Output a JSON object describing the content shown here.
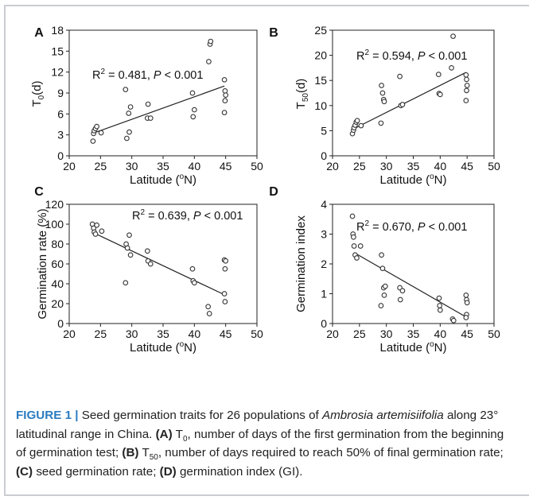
{
  "chart_data": [
    {
      "panel": "A",
      "type": "scatter",
      "ylabel_main": "T",
      "ylabel_sub": "0",
      "ylabel_rest": "(d)",
      "xlabel": "Latitude (°N)",
      "xlim": [
        20,
        50
      ],
      "ylim": [
        0,
        18
      ],
      "xticks": [
        20,
        25,
        30,
        35,
        40,
        45,
        50
      ],
      "yticks": [
        0,
        3,
        6,
        9,
        12,
        15,
        18
      ],
      "annotation": "R² = 0.481, P < 0.001",
      "trendline": [
        [
          24,
          3.3
        ],
        [
          44.8,
          10.0
        ]
      ],
      "points": [
        [
          23.8,
          2.1
        ],
        [
          23.9,
          3.2
        ],
        [
          24.0,
          3.6
        ],
        [
          24.2,
          3.9
        ],
        [
          24.4,
          4.2
        ],
        [
          25.1,
          3.3
        ],
        [
          29.0,
          9.5
        ],
        [
          29.2,
          2.5
        ],
        [
          29.5,
          6.1
        ],
        [
          29.6,
          3.4
        ],
        [
          29.8,
          7.0
        ],
        [
          32.5,
          5.4
        ],
        [
          32.6,
          7.4
        ],
        [
          33.0,
          5.4
        ],
        [
          39.7,
          9.0
        ],
        [
          39.8,
          5.6
        ],
        [
          40.0,
          6.6
        ],
        [
          42.3,
          13.5
        ],
        [
          42.5,
          16.0
        ],
        [
          42.6,
          16.4
        ],
        [
          44.8,
          10.9
        ],
        [
          44.9,
          9.3
        ],
        [
          45.0,
          8.7
        ],
        [
          44.9,
          7.9
        ],
        [
          44.8,
          6.2
        ]
      ]
    },
    {
      "panel": "B",
      "type": "scatter",
      "ylabel_main": "T",
      "ylabel_sub": "50",
      "ylabel_rest": "(d)",
      "xlabel": "Latitude (°N)",
      "xlim": [
        20,
        50
      ],
      "ylim": [
        0,
        25
      ],
      "xticks": [
        20,
        25,
        30,
        35,
        40,
        45,
        50
      ],
      "yticks": [
        0,
        5,
        10,
        15,
        20,
        25
      ],
      "annotation": "R² = 0.594, P < 0.001",
      "trendline": [
        [
          24,
          5.4
        ],
        [
          44.8,
          16.6
        ]
      ],
      "points": [
        [
          23.7,
          4.4
        ],
        [
          23.9,
          5.1
        ],
        [
          24.0,
          5.6
        ],
        [
          24.2,
          6.1
        ],
        [
          24.4,
          6.7
        ],
        [
          24.6,
          7.0
        ],
        [
          25.3,
          6.0
        ],
        [
          29.0,
          6.5
        ],
        [
          29.1,
          14.0
        ],
        [
          29.3,
          12.5
        ],
        [
          29.5,
          11.2
        ],
        [
          29.6,
          10.8
        ],
        [
          32.5,
          15.8
        ],
        [
          32.7,
          10.0
        ],
        [
          33.0,
          10.2
        ],
        [
          39.7,
          16.2
        ],
        [
          39.8,
          12.4
        ],
        [
          40.0,
          12.2
        ],
        [
          42.1,
          17.5
        ],
        [
          42.4,
          23.8
        ],
        [
          44.8,
          16.1
        ],
        [
          44.9,
          15.2
        ],
        [
          45.0,
          14.0
        ],
        [
          44.9,
          13.0
        ],
        [
          44.8,
          11.0
        ]
      ]
    },
    {
      "panel": "C",
      "type": "scatter",
      "ylabel": "Germination rate (%)",
      "xlabel": "Latitude (°N)",
      "xlim": [
        20,
        50
      ],
      "ylim": [
        0,
        120
      ],
      "xticks": [
        20,
        25,
        30,
        35,
        40,
        45,
        50
      ],
      "yticks": [
        0,
        20,
        40,
        60,
        80,
        100,
        120
      ],
      "annotation": "R² = 0.639, P < 0.001",
      "trendline": [
        [
          24,
          91
        ],
        [
          44.8,
          29
        ]
      ],
      "points": [
        [
          23.7,
          100
        ],
        [
          23.9,
          96
        ],
        [
          24.0,
          92
        ],
        [
          24.2,
          90
        ],
        [
          24.4,
          99
        ],
        [
          25.2,
          93
        ],
        [
          29.0,
          41
        ],
        [
          29.1,
          80
        ],
        [
          29.3,
          76
        ],
        [
          29.6,
          89
        ],
        [
          29.8,
          69
        ],
        [
          32.5,
          73
        ],
        [
          32.6,
          63
        ],
        [
          33.0,
          60
        ],
        [
          39.7,
          55
        ],
        [
          39.8,
          43
        ],
        [
          40.0,
          41
        ],
        [
          42.2,
          17
        ],
        [
          42.4,
          10
        ],
        [
          44.8,
          64
        ],
        [
          45.0,
          63
        ],
        [
          44.9,
          55
        ],
        [
          44.8,
          30
        ],
        [
          44.9,
          22
        ]
      ]
    },
    {
      "panel": "D",
      "type": "scatter",
      "ylabel": "Germination index",
      "xlabel": "Latitude (°N)",
      "xlim": [
        20,
        50
      ],
      "ylim": [
        0,
        4
      ],
      "xticks": [
        20,
        25,
        30,
        35,
        40,
        45,
        50
      ],
      "yticks": [
        0,
        1,
        2,
        3,
        4
      ],
      "annotation": "R² = 0.670, P < 0.001",
      "trendline": [
        [
          24,
          2.38
        ],
        [
          44.8,
          0.22
        ]
      ],
      "points": [
        [
          23.7,
          3.6
        ],
        [
          23.8,
          3.0
        ],
        [
          23.9,
          2.9
        ],
        [
          24.0,
          2.6
        ],
        [
          24.2,
          2.3
        ],
        [
          24.5,
          2.2
        ],
        [
          25.2,
          2.6
        ],
        [
          29.0,
          0.6
        ],
        [
          29.1,
          2.3
        ],
        [
          29.3,
          1.85
        ],
        [
          29.5,
          1.2
        ],
        [
          29.6,
          0.95
        ],
        [
          29.8,
          1.25
        ],
        [
          32.5,
          1.2
        ],
        [
          32.6,
          0.8
        ],
        [
          33.0,
          1.1
        ],
        [
          39.8,
          0.85
        ],
        [
          39.9,
          0.6
        ],
        [
          40.0,
          0.45
        ],
        [
          42.3,
          0.15
        ],
        [
          42.5,
          0.1
        ],
        [
          44.8,
          0.95
        ],
        [
          44.9,
          0.8
        ],
        [
          45.0,
          0.7
        ],
        [
          44.9,
          0.3
        ],
        [
          44.8,
          0.2
        ]
      ]
    }
  ],
  "caption": {
    "figure_label": "FIGURE 1 |",
    "seg_1": " Seed germination traits for 26 populations of ",
    "species": "Ambrosia artemisiifolia",
    "seg_2": " along 23° latitudinal range in China. ",
    "part_a": "(A)",
    "t0": "T",
    "t0_sub": "0",
    "seg_3": ", number of days of the first germination from the beginning of germination test; ",
    "part_b": "(B)",
    "t50": "T",
    "t50_sub": "50",
    "seg_4": ", number of days required to reach 50% of final germination rate; ",
    "part_c": "(C)",
    "seg_5": " seed germination rate; ",
    "part_d": "(D)",
    "seg_6": " germination index (GI)."
  },
  "colors": {
    "frame_rule": "#c9cdd1",
    "figure_label": "#2a7bbf",
    "marker": "#333333"
  }
}
